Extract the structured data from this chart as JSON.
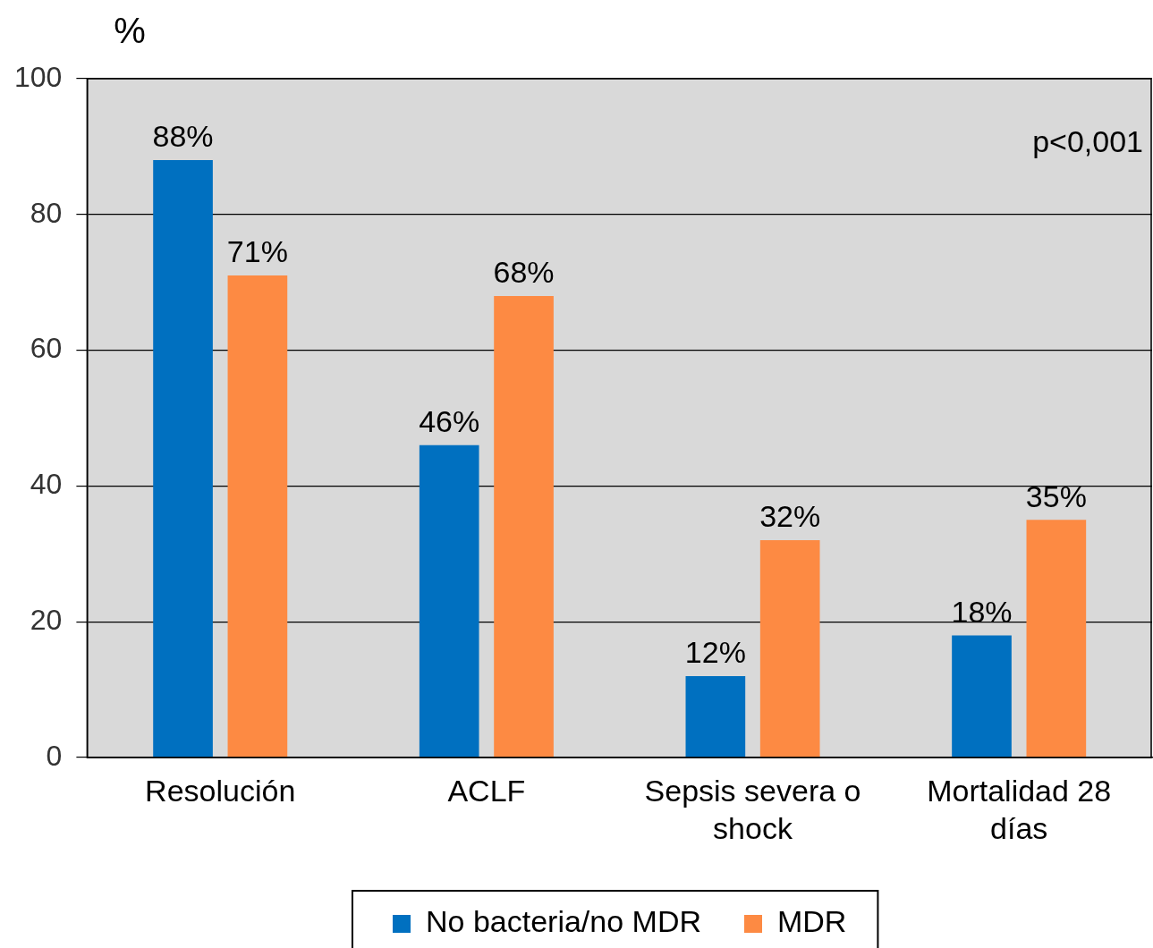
{
  "chart_data": {
    "type": "bar",
    "ylabel": "%",
    "categories": [
      "Resolución",
      "ACLF",
      "Sepsis severa o shock",
      "Mortalidad 28 días"
    ],
    "series": [
      {
        "name": "No bacteria/no MDR",
        "color": "#0070c0",
        "values": [
          88,
          46,
          12,
          18
        ],
        "value_labels": [
          "88%",
          "46%",
          "12%",
          "18%"
        ]
      },
      {
        "name": "MDR",
        "color": "#fd8a43",
        "values": [
          71,
          68,
          32,
          35
        ],
        "value_labels": [
          "71%",
          "68%",
          "32%",
          "35%"
        ]
      }
    ],
    "ylim": [
      0,
      100
    ],
    "yticks": [
      0,
      20,
      40,
      60,
      80,
      100
    ],
    "grid": "y",
    "legend": "bottom",
    "annotations": [
      "p<0,001"
    ]
  }
}
